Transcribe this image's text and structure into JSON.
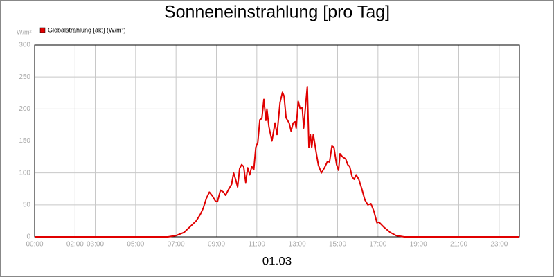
{
  "chart_data": {
    "type": "line",
    "title": "Sonneneinstrahlung [pro Tag]",
    "y_unit": "W/m²",
    "x_label": "01.03",
    "grid": true,
    "xlim": [
      0,
      24
    ],
    "ylim": [
      0,
      300
    ],
    "yticks": [
      0,
      50,
      100,
      150,
      200,
      250,
      300
    ],
    "xticks": [
      {
        "value": 0,
        "label": "00:00"
      },
      {
        "value": 2,
        "label": "02:00"
      },
      {
        "value": 3,
        "label": "03:00"
      },
      {
        "value": 5,
        "label": "05:00"
      },
      {
        "value": 7,
        "label": "07:00"
      },
      {
        "value": 9,
        "label": "09:00"
      },
      {
        "value": 11,
        "label": "11:00"
      },
      {
        "value": 13,
        "label": "13:00"
      },
      {
        "value": 15,
        "label": "15:00"
      },
      {
        "value": 17,
        "label": "17:00"
      },
      {
        "value": 19,
        "label": "19:00"
      },
      {
        "value": 21,
        "label": "21:00"
      },
      {
        "value": 23,
        "label": "23:00"
      }
    ],
    "x": [
      0,
      6.6,
      7.0,
      7.4,
      7.7,
      8.0,
      8.2,
      8.35,
      8.5,
      8.65,
      8.8,
      8.95,
      9.05,
      9.2,
      9.35,
      9.45,
      9.6,
      9.75,
      9.85,
      9.95,
      10.05,
      10.15,
      10.25,
      10.35,
      10.45,
      10.55,
      10.65,
      10.75,
      10.85,
      10.95,
      11.05,
      11.15,
      11.25,
      11.35,
      11.45,
      11.5,
      11.6,
      11.75,
      11.9,
      12.0,
      12.15,
      12.27,
      12.35,
      12.45,
      12.6,
      12.7,
      12.8,
      12.9,
      12.95,
      13.05,
      13.15,
      13.25,
      13.32,
      13.4,
      13.5,
      13.58,
      13.65,
      13.72,
      13.8,
      13.95,
      14.05,
      14.2,
      14.35,
      14.5,
      14.6,
      14.72,
      14.82,
      14.95,
      15.05,
      15.12,
      15.25,
      15.4,
      15.5,
      15.6,
      15.72,
      15.82,
      15.92,
      16.05,
      16.2,
      16.35,
      16.5,
      16.65,
      16.8,
      16.95,
      17.05,
      17.3,
      17.6,
      17.9,
      18.3,
      24
    ],
    "series": [
      {
        "name": "Globalstrahlung [akt] (W/m²)",
        "color": "#e00000",
        "values": [
          0,
          0,
          2,
          7,
          16,
          25,
          35,
          45,
          60,
          70,
          64,
          56,
          55,
          73,
          70,
          65,
          74,
          82,
          100,
          90,
          78,
          107,
          113,
          110,
          85,
          108,
          97,
          110,
          105,
          140,
          148,
          183,
          185,
          215,
          182,
          200,
          172,
          150,
          178,
          160,
          210,
          226,
          220,
          186,
          178,
          165,
          178,
          180,
          170,
          212,
          200,
          202,
          170,
          200,
          235,
          140,
          160,
          140,
          160,
          130,
          112,
          100,
          108,
          118,
          117,
          142,
          140,
          113,
          104,
          130,
          125,
          122,
          113,
          110,
          94,
          90,
          97,
          90,
          75,
          58,
          50,
          52,
          40,
          22,
          23,
          15,
          7,
          2,
          0,
          0
        ]
      }
    ]
  }
}
